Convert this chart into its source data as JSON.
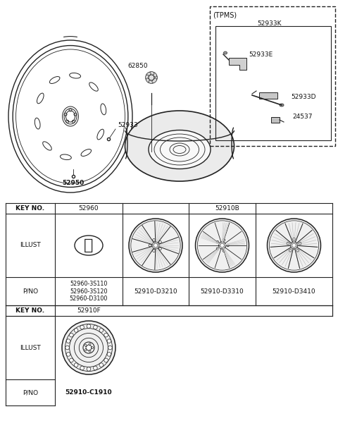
{
  "bg_color": "#ffffff",
  "line_color": "#222222",
  "parts": {
    "main_wheel_label": "52933",
    "valve_label": "52950",
    "cap_label": "62850",
    "tpms_box_title": "(TPMS)",
    "tpms_key": "52933K",
    "tpms_e": "52933E",
    "tpms_d": "52933D",
    "tpms_num": "24537"
  },
  "table": {
    "row1_key_label": "KEY NO.",
    "row1_col1": "52960",
    "row1_col2": "52910B",
    "row2_label": "ILLUST",
    "row3_label": "P/NO",
    "col1_pno": "52960-3S110\n52960-3S120\n52960-D3100",
    "col2_pno": "52910-D3210",
    "col3_pno": "52910-D3310",
    "col4_pno": "52910-D3410",
    "row4_key_label": "KEY NO.",
    "row4_col1": "52910F",
    "row5_label": "ILLUST",
    "row6_label": "P/NO",
    "row6_col1": "52910-C1910"
  }
}
